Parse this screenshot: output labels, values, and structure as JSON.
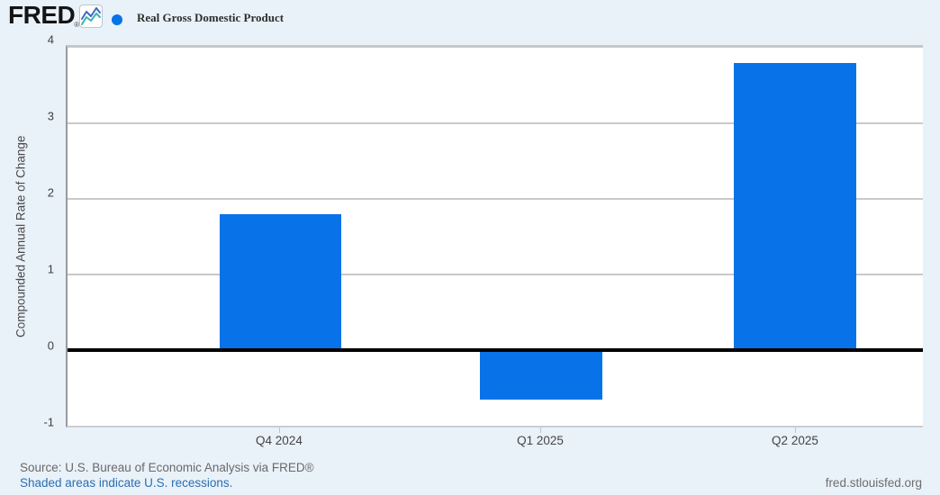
{
  "header": {
    "logo_text": "FRED",
    "registered_mark": "®",
    "logo_chart_icon": "line-chart-icon"
  },
  "chart_data": {
    "type": "bar",
    "title": "Real Gross Domestic Product",
    "categories": [
      "Q4 2024",
      "Q1 2025",
      "Q2 2025"
    ],
    "values": [
      1.8,
      -0.65,
      3.8
    ],
    "xlabel": "",
    "ylabel": "Compounded Annual Rate of Change",
    "ylim": [
      -1,
      4
    ],
    "yticks": [
      4,
      3,
      2,
      1,
      0,
      -1
    ],
    "grid": true,
    "zero_line": true,
    "legend_position": "top-left",
    "layout": {
      "bar_centers_frac": [
        0.2489,
        0.5536,
        0.8508
      ],
      "bar_width_frac": 0.1429
    }
  },
  "footer": {
    "source_line": "Source: U.S. Bureau of Economic Analysis via FRED®",
    "recessions_note": "Shaded areas indicate U.S. recessions.",
    "site_link": "fred.stlouisfed.org"
  },
  "colors": {
    "accent_blue": "#0873e8",
    "link_blue": "#2a6fb0",
    "background": "#e9f1f9",
    "icon_line_blue": "#3e68c8",
    "icon_line_teal": "#3cb3ab"
  }
}
